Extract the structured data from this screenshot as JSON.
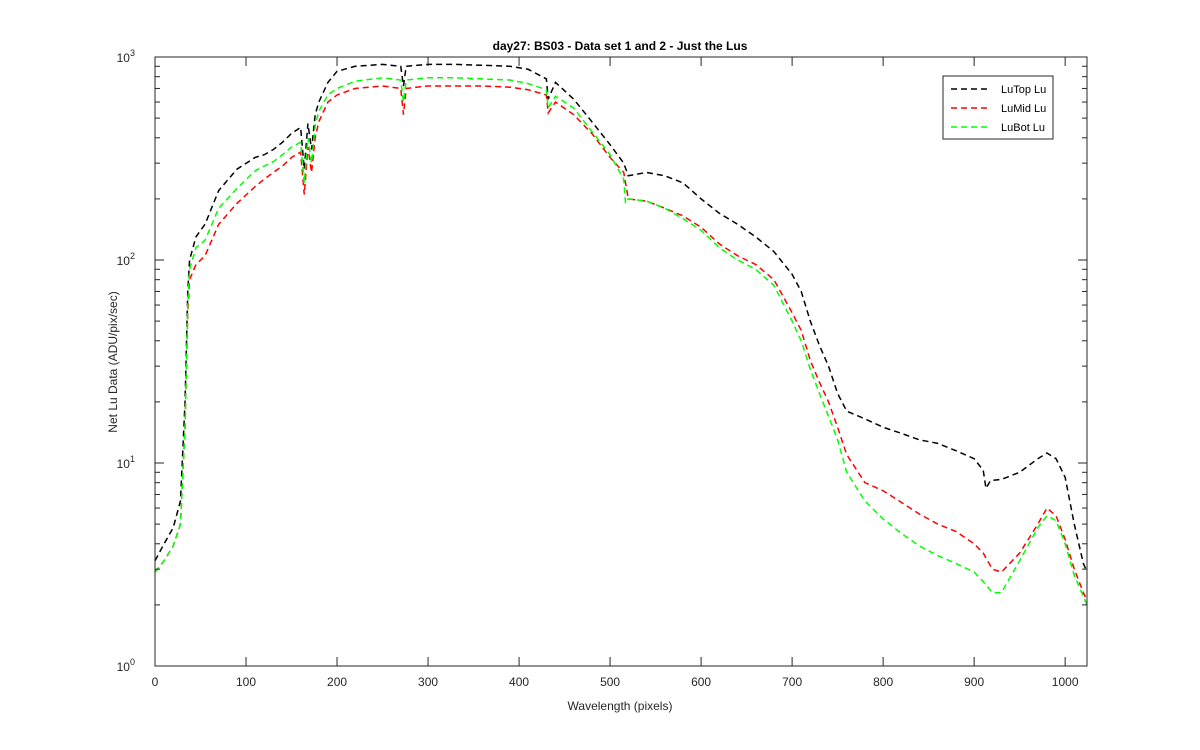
{
  "chart_data": {
    "type": "line",
    "title": "day27: BS03 - Data set 1 and 2 - Just the Lus",
    "xlabel": "Wavelength (pixels)",
    "ylabel": "Net Lu Data (ADU/pix/sec)",
    "xlim": [
      0,
      1024
    ],
    "ylim": [
      1,
      1000
    ],
    "yscale": "log",
    "x_ticks": [
      0,
      100,
      200,
      300,
      400,
      500,
      600,
      700,
      800,
      900,
      1000
    ],
    "x_tick_labels": [
      "0",
      "100",
      "200",
      "300",
      "400",
      "500",
      "600",
      "700",
      "800",
      "900",
      "1000"
    ],
    "y_ticks": [
      1,
      10,
      100,
      1000
    ],
    "y_tick_bases": [
      "10",
      "10",
      "10",
      "10"
    ],
    "y_tick_exponents": [
      "0",
      "1",
      "2",
      "3"
    ],
    "grid": false,
    "legend_position": "top-right",
    "series": [
      {
        "name": "LuTop  Lu",
        "color": "#000000",
        "line_style": "dashed",
        "x": [
          0,
          10,
          20,
          28,
          33,
          36,
          38,
          45,
          55,
          70,
          90,
          110,
          120,
          130,
          140,
          150,
          160,
          164,
          168,
          172,
          176,
          180,
          190,
          200,
          220,
          250,
          270,
          273,
          276,
          300,
          330,
          360,
          390,
          410,
          430,
          432,
          440,
          460,
          480,
          500,
          515,
          520,
          540,
          560,
          580,
          600,
          620,
          640,
          660,
          680,
          700,
          710,
          720,
          730,
          740,
          750,
          760,
          780,
          800,
          820,
          840,
          860,
          880,
          900,
          910,
          913,
          918,
          930,
          950,
          970,
          980,
          990,
          1000,
          1010,
          1020,
          1024
        ],
        "y": [
          3.3,
          4,
          4.8,
          6.5,
          20,
          70,
          100,
          130,
          150,
          220,
          280,
          320,
          330,
          350,
          380,
          420,
          450,
          280,
          470,
          350,
          520,
          600,
          750,
          850,
          900,
          920,
          900,
          720,
          900,
          920,
          920,
          910,
          900,
          870,
          780,
          620,
          750,
          620,
          480,
          370,
          300,
          260,
          270,
          260,
          240,
          200,
          170,
          150,
          130,
          110,
          85,
          70,
          50,
          38,
          30,
          22,
          18,
          16.5,
          15,
          14,
          13,
          12.5,
          11.5,
          10.5,
          9.2,
          7.5,
          8.2,
          8.3,
          9,
          10.5,
          11.2,
          10.5,
          8.5,
          5,
          3.2,
          2.9
        ]
      },
      {
        "name": "LuMid  Lu",
        "color": "#ff0000",
        "line_style": "dashed",
        "x": [
          0,
          10,
          20,
          28,
          33,
          36,
          38,
          45,
          55,
          70,
          90,
          110,
          120,
          130,
          140,
          150,
          160,
          164,
          168,
          172,
          176,
          180,
          190,
          200,
          220,
          250,
          270,
          273,
          276,
          300,
          330,
          360,
          390,
          410,
          430,
          432,
          440,
          460,
          480,
          500,
          515,
          520,
          540,
          560,
          580,
          600,
          620,
          640,
          660,
          680,
          700,
          710,
          720,
          730,
          740,
          750,
          760,
          780,
          800,
          820,
          840,
          860,
          880,
          900,
          910,
          920,
          930,
          950,
          970,
          980,
          990,
          1000,
          1010,
          1020,
          1024
        ],
        "y": [
          2.9,
          3.3,
          3.9,
          5,
          15,
          55,
          80,
          95,
          105,
          150,
          190,
          230,
          250,
          270,
          290,
          320,
          340,
          210,
          360,
          270,
          400,
          480,
          600,
          650,
          700,
          720,
          700,
          520,
          700,
          720,
          720,
          720,
          710,
          690,
          650,
          530,
          600,
          520,
          420,
          320,
          270,
          200,
          195,
          180,
          165,
          145,
          120,
          105,
          95,
          80,
          55,
          45,
          32,
          25,
          20,
          15,
          11,
          8,
          7.3,
          6.4,
          5.6,
          5,
          4.6,
          4,
          3.6,
          3,
          2.9,
          3.6,
          5,
          6,
          5.5,
          4.2,
          3,
          2.3,
          2.1
        ]
      },
      {
        "name": "LuBot  Lu",
        "color": "#00ff00",
        "line_style": "dashed",
        "x": [
          0,
          10,
          20,
          28,
          33,
          36,
          38,
          45,
          55,
          70,
          90,
          110,
          120,
          130,
          140,
          150,
          160,
          164,
          168,
          172,
          176,
          180,
          190,
          200,
          220,
          250,
          270,
          273,
          276,
          300,
          330,
          360,
          390,
          410,
          430,
          432,
          440,
          460,
          480,
          500,
          515,
          517,
          520,
          540,
          560,
          580,
          600,
          620,
          640,
          660,
          680,
          700,
          710,
          720,
          730,
          740,
          750,
          760,
          780,
          800,
          820,
          840,
          860,
          880,
          900,
          910,
          920,
          930,
          950,
          970,
          980,
          990,
          1000,
          1010,
          1020,
          1024
        ],
        "y": [
          2.9,
          3.3,
          3.9,
          5,
          15,
          60,
          90,
          115,
          125,
          180,
          225,
          275,
          290,
          305,
          330,
          360,
          380,
          240,
          400,
          300,
          460,
          540,
          650,
          700,
          760,
          790,
          770,
          600,
          770,
          790,
          790,
          780,
          770,
          740,
          690,
          560,
          640,
          560,
          430,
          330,
          250,
          190,
          200,
          195,
          180,
          160,
          140,
          115,
          100,
          90,
          75,
          50,
          40,
          29,
          22,
          17,
          13,
          9,
          6.5,
          5.3,
          4.5,
          3.9,
          3.5,
          3.2,
          2.9,
          2.6,
          2.3,
          2.3,
          3.3,
          4.8,
          5.5,
          5.2,
          4,
          2.8,
          2.2,
          2
        ]
      }
    ]
  }
}
